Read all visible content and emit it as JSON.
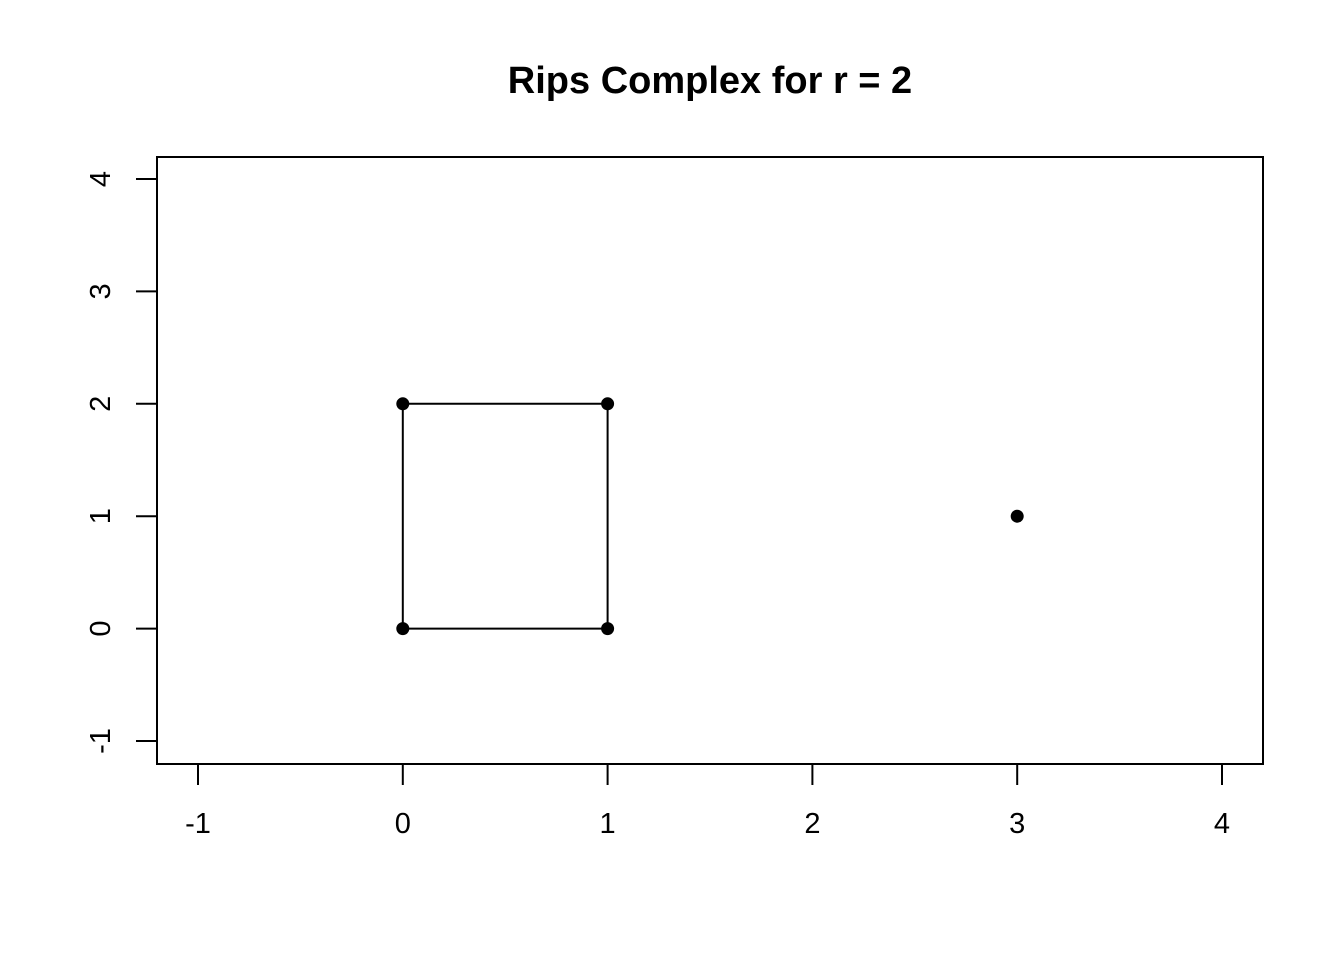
{
  "chart_data": {
    "type": "scatter",
    "title": "Rips Complex for r = 2",
    "xlabel": "",
    "ylabel": "",
    "xlim": [
      -1.2,
      4.2
    ],
    "ylim": [
      -1.2,
      4.2
    ],
    "x_ticks": [
      -1,
      0,
      1,
      2,
      3,
      4
    ],
    "x_tick_labels": [
      "-1",
      "0",
      "1",
      "2",
      "3",
      "4"
    ],
    "y_ticks": [
      -1,
      0,
      1,
      2,
      3,
      4
    ],
    "y_tick_labels": [
      "-1",
      "0",
      "1",
      "2",
      "3",
      "4"
    ],
    "grid": false,
    "legend": "none",
    "point_color": "#000000",
    "edge_color": "#000000",
    "points": [
      {
        "x": 0,
        "y": 0
      },
      {
        "x": 1,
        "y": 0
      },
      {
        "x": 0,
        "y": 2
      },
      {
        "x": 1,
        "y": 2
      },
      {
        "x": 3,
        "y": 1
      }
    ],
    "edges": [
      {
        "from": [
          0,
          0
        ],
        "to": [
          1,
          0
        ]
      },
      {
        "from": [
          1,
          0
        ],
        "to": [
          1,
          2
        ]
      },
      {
        "from": [
          1,
          2
        ],
        "to": [
          0,
          2
        ]
      },
      {
        "from": [
          0,
          2
        ],
        "to": [
          0,
          0
        ]
      }
    ]
  }
}
